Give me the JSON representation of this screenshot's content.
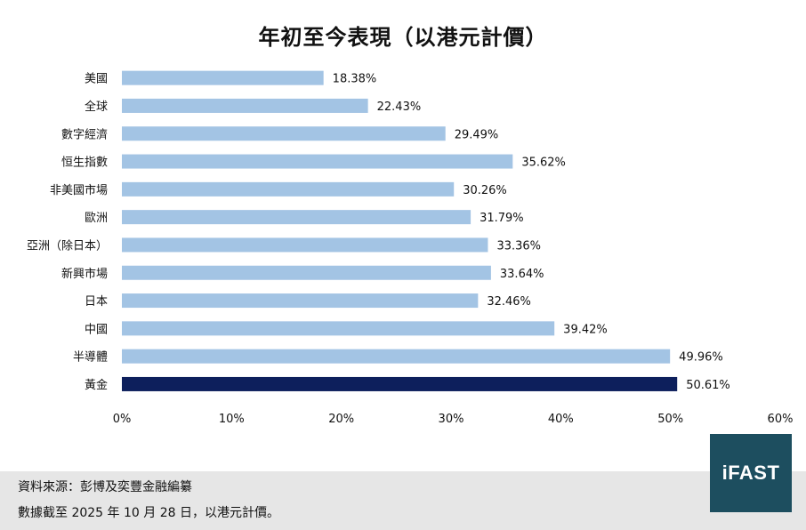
{
  "chart_data": {
    "type": "bar",
    "orientation": "horizontal",
    "title": "年初至今表現（以港元計價）",
    "categories": [
      "美國",
      "全球",
      "數字經濟",
      "恒生指數",
      "非美國市場",
      "歐洲",
      "亞洲（除日本）",
      "新興市場",
      "日本",
      "中國",
      "半導體",
      "黃金"
    ],
    "values": [
      18.38,
      22.43,
      29.49,
      35.62,
      30.26,
      31.79,
      33.36,
      33.64,
      32.46,
      39.42,
      49.96,
      50.61
    ],
    "value_labels": [
      "18.38%",
      "22.43%",
      "29.49%",
      "35.62%",
      "30.26%",
      "31.79%",
      "33.36%",
      "33.64%",
      "32.46%",
      "39.42%",
      "49.96%",
      "50.61%"
    ],
    "xlim": [
      0,
      60
    ],
    "x_ticks": [
      0,
      10,
      20,
      30,
      40,
      50,
      60
    ],
    "x_tick_labels": [
      "0%",
      "10%",
      "20%",
      "30%",
      "40%",
      "50%",
      "60%"
    ],
    "xlabel": "",
    "ylabel": "",
    "grid": false,
    "highlight_category": "黃金",
    "colors": {
      "default_bar": "#a3c4e4",
      "highlight_bar": "#0d1f5c"
    }
  },
  "footer": {
    "source": "資料來源：彭博及奕豐金融編纂",
    "date_note": "數據截至 2025 年 10 月 28 日，以港元計價。"
  },
  "logo": {
    "text": "iFAST",
    "background": "#1d4e5f"
  }
}
